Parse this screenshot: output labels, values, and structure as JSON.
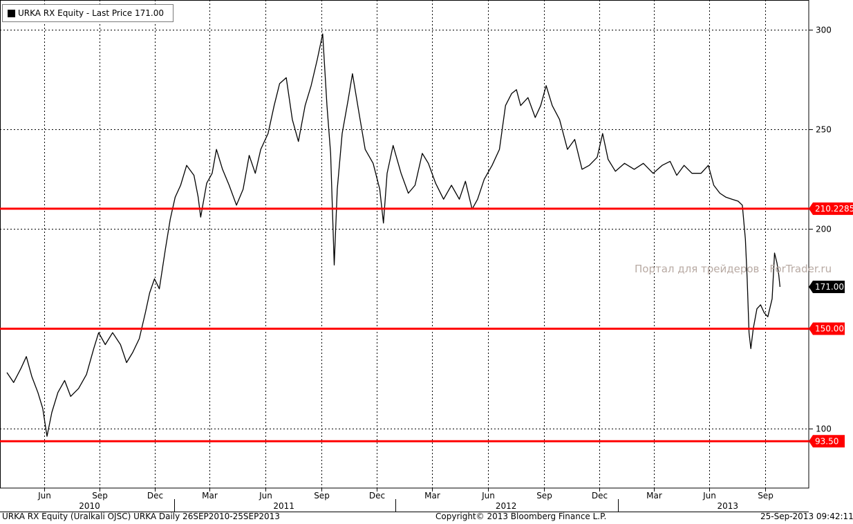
{
  "legend": {
    "text": "URKA RX Equity - Last Price 171.00"
  },
  "footer": {
    "left": "URKA RX Equity (Uralkali OJSC) URKA  Daily 26SEP2010-25SEP2013",
    "center": "Copyright© 2013 Bloomberg Finance L.P.",
    "right": "25-Sep-2013 09:42:11"
  },
  "watermark": "Портал для трейдеров - ForTrader.ru",
  "chart_data": {
    "type": "line",
    "x_range": [
      "2010-04-01",
      "2013-10-31"
    ],
    "ylim": [
      70,
      315
    ],
    "y_ticks": [
      100,
      150,
      200,
      250,
      300
    ],
    "grid": true,
    "y_axis_side": "right",
    "month_ticks": [
      {
        "label": "Jun",
        "date": "2010-06-01"
      },
      {
        "label": "Sep",
        "date": "2010-09-01"
      },
      {
        "label": "Dec",
        "date": "2010-12-01"
      },
      {
        "label": "Mar",
        "date": "2011-03-01"
      },
      {
        "label": "Jun",
        "date": "2011-06-01"
      },
      {
        "label": "Sep",
        "date": "2011-09-01"
      },
      {
        "label": "Dec",
        "date": "2011-12-01"
      },
      {
        "label": "Mar",
        "date": "2012-03-01"
      },
      {
        "label": "Jun",
        "date": "2012-06-01"
      },
      {
        "label": "Sep",
        "date": "2012-09-01"
      },
      {
        "label": "Dec",
        "date": "2012-12-01"
      },
      {
        "label": "Mar",
        "date": "2013-03-01"
      },
      {
        "label": "Jun",
        "date": "2013-06-01"
      },
      {
        "label": "Sep",
        "date": "2013-09-01"
      }
    ],
    "year_labels": [
      {
        "label": "2010",
        "date": "2010-08-15"
      },
      {
        "label": "2011",
        "date": "2011-07-01"
      },
      {
        "label": "2012",
        "date": "2012-07-01"
      },
      {
        "label": "2013",
        "date": "2013-07-01"
      }
    ],
    "horizontal_lines": [
      {
        "value": 210.2285,
        "label": "210.2285",
        "color": "#ff0000"
      },
      {
        "value": 150.0,
        "label": "150.00",
        "color": "#ff0000"
      },
      {
        "value": 93.5,
        "label": "93.50",
        "color": "#ff0000"
      }
    ],
    "last_price": {
      "value": 171.0,
      "label": "171.00"
    },
    "series": [
      {
        "color": "#000000",
        "points": [
          {
            "x": "2010-04-01",
            "y": 128
          },
          {
            "x": "2010-04-12",
            "y": 123
          },
          {
            "x": "2010-04-24",
            "y": 130
          },
          {
            "x": "2010-05-03",
            "y": 136
          },
          {
            "x": "2010-05-12",
            "y": 126
          },
          {
            "x": "2010-05-22",
            "y": 118
          },
          {
            "x": "2010-05-30",
            "y": 110
          },
          {
            "x": "2010-06-06",
            "y": 96
          },
          {
            "x": "2010-06-14",
            "y": 108
          },
          {
            "x": "2010-06-24",
            "y": 118
          },
          {
            "x": "2010-07-05",
            "y": 124
          },
          {
            "x": "2010-07-15",
            "y": 116
          },
          {
            "x": "2010-07-28",
            "y": 120
          },
          {
            "x": "2010-08-10",
            "y": 127
          },
          {
            "x": "2010-08-22",
            "y": 140
          },
          {
            "x": "2010-08-30",
            "y": 148
          },
          {
            "x": "2010-09-10",
            "y": 142
          },
          {
            "x": "2010-09-22",
            "y": 148
          },
          {
            "x": "2010-10-05",
            "y": 142
          },
          {
            "x": "2010-10-15",
            "y": 133
          },
          {
            "x": "2010-10-25",
            "y": 138
          },
          {
            "x": "2010-11-05",
            "y": 145
          },
          {
            "x": "2010-11-15",
            "y": 158
          },
          {
            "x": "2010-11-22",
            "y": 168
          },
          {
            "x": "2010-11-30",
            "y": 175
          },
          {
            "x": "2010-12-08",
            "y": 170
          },
          {
            "x": "2010-12-18",
            "y": 190
          },
          {
            "x": "2010-12-26",
            "y": 205
          },
          {
            "x": "2011-01-03",
            "y": 216
          },
          {
            "x": "2011-01-12",
            "y": 222
          },
          {
            "x": "2011-01-22",
            "y": 232
          },
          {
            "x": "2011-02-03",
            "y": 227
          },
          {
            "x": "2011-02-10",
            "y": 216
          },
          {
            "x": "2011-02-14",
            "y": 206
          },
          {
            "x": "2011-02-24",
            "y": 223
          },
          {
            "x": "2011-03-05",
            "y": 228
          },
          {
            "x": "2011-03-12",
            "y": 240
          },
          {
            "x": "2011-03-22",
            "y": 230
          },
          {
            "x": "2011-04-02",
            "y": 222
          },
          {
            "x": "2011-04-14",
            "y": 212
          },
          {
            "x": "2011-04-25",
            "y": 220
          },
          {
            "x": "2011-05-05",
            "y": 237
          },
          {
            "x": "2011-05-15",
            "y": 228
          },
          {
            "x": "2011-05-24",
            "y": 240
          },
          {
            "x": "2011-06-05",
            "y": 248
          },
          {
            "x": "2011-06-15",
            "y": 262
          },
          {
            "x": "2011-06-24",
            "y": 273
          },
          {
            "x": "2011-07-05",
            "y": 276
          },
          {
            "x": "2011-07-15",
            "y": 255
          },
          {
            "x": "2011-07-25",
            "y": 244
          },
          {
            "x": "2011-08-05",
            "y": 262
          },
          {
            "x": "2011-08-15",
            "y": 272
          },
          {
            "x": "2011-08-25",
            "y": 285
          },
          {
            "x": "2011-09-03",
            "y": 298
          },
          {
            "x": "2011-09-10",
            "y": 262
          },
          {
            "x": "2011-09-16",
            "y": 238
          },
          {
            "x": "2011-09-22",
            "y": 182
          },
          {
            "x": "2011-09-27",
            "y": 220
          },
          {
            "x": "2011-10-05",
            "y": 248
          },
          {
            "x": "2011-10-15",
            "y": 265
          },
          {
            "x": "2011-10-22",
            "y": 278
          },
          {
            "x": "2011-11-02",
            "y": 258
          },
          {
            "x": "2011-11-12",
            "y": 240
          },
          {
            "x": "2011-11-25",
            "y": 233
          },
          {
            "x": "2011-12-06",
            "y": 220
          },
          {
            "x": "2011-12-12",
            "y": 203
          },
          {
            "x": "2011-12-18",
            "y": 228
          },
          {
            "x": "2011-12-28",
            "y": 242
          },
          {
            "x": "2012-01-10",
            "y": 228
          },
          {
            "x": "2012-01-22",
            "y": 218
          },
          {
            "x": "2012-02-02",
            "y": 222
          },
          {
            "x": "2012-02-14",
            "y": 238
          },
          {
            "x": "2012-02-24",
            "y": 233
          },
          {
            "x": "2012-03-07",
            "y": 223
          },
          {
            "x": "2012-03-20",
            "y": 215
          },
          {
            "x": "2012-04-02",
            "y": 222
          },
          {
            "x": "2012-04-15",
            "y": 215
          },
          {
            "x": "2012-04-25",
            "y": 224
          },
          {
            "x": "2012-05-06",
            "y": 210
          },
          {
            "x": "2012-05-15",
            "y": 215
          },
          {
            "x": "2012-05-26",
            "y": 225
          },
          {
            "x": "2012-06-08",
            "y": 232
          },
          {
            "x": "2012-06-20",
            "y": 240
          },
          {
            "x": "2012-06-30",
            "y": 262
          },
          {
            "x": "2012-07-10",
            "y": 268
          },
          {
            "x": "2012-07-18",
            "y": 270
          },
          {
            "x": "2012-07-25",
            "y": 262
          },
          {
            "x": "2012-08-06",
            "y": 266
          },
          {
            "x": "2012-08-18",
            "y": 256
          },
          {
            "x": "2012-08-27",
            "y": 262
          },
          {
            "x": "2012-09-05",
            "y": 272
          },
          {
            "x": "2012-09-15",
            "y": 262
          },
          {
            "x": "2012-09-27",
            "y": 255
          },
          {
            "x": "2012-10-10",
            "y": 240
          },
          {
            "x": "2012-10-22",
            "y": 245
          },
          {
            "x": "2012-11-03",
            "y": 230
          },
          {
            "x": "2012-11-15",
            "y": 232
          },
          {
            "x": "2012-11-28",
            "y": 236
          },
          {
            "x": "2012-12-07",
            "y": 248
          },
          {
            "x": "2012-12-16",
            "y": 235
          },
          {
            "x": "2012-12-28",
            "y": 229
          },
          {
            "x": "2013-01-12",
            "y": 233
          },
          {
            "x": "2013-01-28",
            "y": 230
          },
          {
            "x": "2013-02-12",
            "y": 233
          },
          {
            "x": "2013-02-28",
            "y": 228
          },
          {
            "x": "2013-03-15",
            "y": 232
          },
          {
            "x": "2013-03-28",
            "y": 234
          },
          {
            "x": "2013-04-08",
            "y": 227
          },
          {
            "x": "2013-04-20",
            "y": 232
          },
          {
            "x": "2013-05-03",
            "y": 228
          },
          {
            "x": "2013-05-18",
            "y": 228
          },
          {
            "x": "2013-05-30",
            "y": 232
          },
          {
            "x": "2013-06-08",
            "y": 222
          },
          {
            "x": "2013-06-18",
            "y": 218
          },
          {
            "x": "2013-06-28",
            "y": 216
          },
          {
            "x": "2013-07-08",
            "y": 215
          },
          {
            "x": "2013-07-18",
            "y": 214
          },
          {
            "x": "2013-07-25",
            "y": 212
          },
          {
            "x": "2013-07-30",
            "y": 195
          },
          {
            "x": "2013-08-02",
            "y": 175
          },
          {
            "x": "2013-08-05",
            "y": 148
          },
          {
            "x": "2013-08-08",
            "y": 140
          },
          {
            "x": "2013-08-12",
            "y": 150
          },
          {
            "x": "2013-08-18",
            "y": 160
          },
          {
            "x": "2013-08-24",
            "y": 162
          },
          {
            "x": "2013-08-30",
            "y": 158
          },
          {
            "x": "2013-09-05",
            "y": 156
          },
          {
            "x": "2013-09-12",
            "y": 165
          },
          {
            "x": "2013-09-16",
            "y": 188
          },
          {
            "x": "2013-09-20",
            "y": 183
          },
          {
            "x": "2013-09-23",
            "y": 177
          },
          {
            "x": "2013-09-25",
            "y": 171
          }
        ]
      }
    ]
  }
}
